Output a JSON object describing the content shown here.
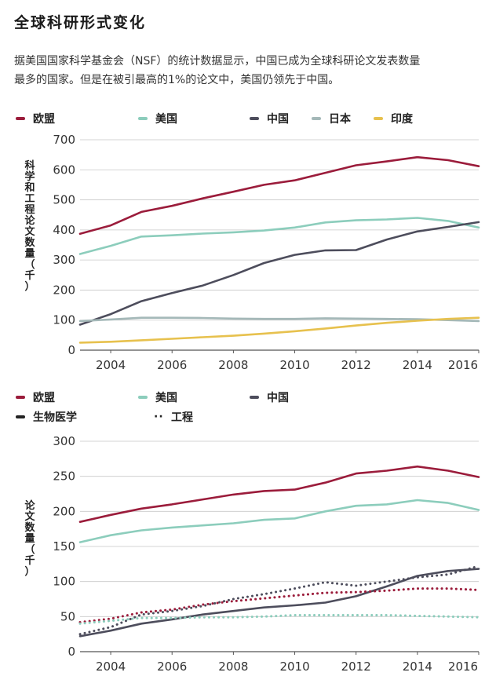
{
  "page": {
    "title": "全球科研形式变化",
    "intro_line1": "据美国国家科学基金会（NSF）的统计数据显示，中国已成为全球科研论文发表数量",
    "intro_line2": "最多的国家。但是在被引最高的1%的论文中，美国仍领先于中国。"
  },
  "chart_data": [
    {
      "type": "line",
      "title": "",
      "ylabel": "科学和工程论文数量（千）",
      "xlabel": "",
      "ylim": [
        0,
        700
      ],
      "xlim": [
        2003,
        2016
      ],
      "yticks": [
        0,
        100,
        200,
        300,
        400,
        500,
        600,
        700
      ],
      "xticks": [
        2004,
        2006,
        2008,
        2010,
        2012,
        2014,
        2016
      ],
      "x": [
        2003,
        2004,
        2005,
        2006,
        2007,
        2008,
        2009,
        2010,
        2011,
        2012,
        2013,
        2014,
        2015,
        2016
      ],
      "series": [
        {
          "name": "欧盟",
          "color": "#9b1c3b",
          "values": [
            387,
            415,
            460,
            480,
            505,
            527,
            550,
            565,
            590,
            615,
            628,
            642,
            632,
            612
          ]
        },
        {
          "name": "美国",
          "color": "#8ccdbc",
          "values": [
            320,
            347,
            378,
            382,
            388,
            392,
            398,
            408,
            425,
            432,
            435,
            440,
            430,
            408
          ]
        },
        {
          "name": "中国",
          "color": "#4d4d5c",
          "values": [
            85,
            120,
            163,
            190,
            215,
            250,
            290,
            317,
            332,
            333,
            368,
            395,
            410,
            426
          ]
        },
        {
          "name": "日本",
          "color": "#a4b8b8",
          "values": [
            97,
            102,
            108,
            108,
            107,
            105,
            104,
            104,
            106,
            105,
            104,
            103,
            100,
            97
          ]
        },
        {
          "name": "印度",
          "color": "#e7c14e",
          "values": [
            25,
            28,
            33,
            38,
            43,
            48,
            55,
            63,
            72,
            82,
            91,
            98,
            104,
            108
          ]
        }
      ]
    },
    {
      "type": "line",
      "title": "",
      "ylabel": "论文数量（千）",
      "xlabel": "",
      "ylim": [
        0,
        300
      ],
      "xlim": [
        2003,
        2016
      ],
      "yticks": [
        0,
        50,
        100,
        150,
        200,
        250,
        300
      ],
      "xticks": [
        2004,
        2006,
        2008,
        2010,
        2012,
        2014,
        2016
      ],
      "x": [
        2003,
        2004,
        2005,
        2006,
        2007,
        2008,
        2009,
        2010,
        2011,
        2012,
        2013,
        2014,
        2015,
        2016
      ],
      "legend_extra": [
        {
          "name": "生物医学",
          "style": "solid"
        },
        {
          "name": "工程",
          "style": "dotted"
        }
      ],
      "series": [
        {
          "name": "欧盟",
          "group": "生物医学",
          "style": "solid",
          "color": "#9b1c3b",
          "values": [
            185,
            195,
            204,
            210,
            217,
            224,
            229,
            231,
            241,
            254,
            258,
            264,
            258,
            249
          ]
        },
        {
          "name": "美国",
          "group": "生物医学",
          "style": "solid",
          "color": "#8ccdbc",
          "values": [
            156,
            166,
            173,
            177,
            180,
            183,
            188,
            190,
            200,
            208,
            210,
            216,
            212,
            202
          ]
        },
        {
          "name": "中国",
          "group": "生物医学",
          "style": "solid",
          "color": "#4d4d5c",
          "values": [
            22,
            30,
            40,
            46,
            53,
            58,
            63,
            66,
            70,
            79,
            93,
            108,
            115,
            118
          ]
        },
        {
          "name": "欧盟",
          "group": "工程",
          "style": "dotted",
          "color": "#9b1c3b",
          "values": [
            42,
            47,
            56,
            60,
            67,
            72,
            76,
            80,
            84,
            85,
            87,
            90,
            90,
            88
          ]
        },
        {
          "name": "美国",
          "group": "工程",
          "style": "dotted",
          "color": "#8ccdbc",
          "values": [
            40,
            44,
            48,
            48,
            49,
            49,
            50,
            52,
            52,
            52,
            52,
            51,
            50,
            49
          ]
        },
        {
          "name": "中国",
          "group": "工程",
          "style": "dotted",
          "color": "#4d4d5c",
          "values": [
            25,
            35,
            53,
            58,
            65,
            75,
            82,
            90,
            99,
            94,
            100,
            106,
            110,
            122
          ]
        }
      ]
    }
  ]
}
